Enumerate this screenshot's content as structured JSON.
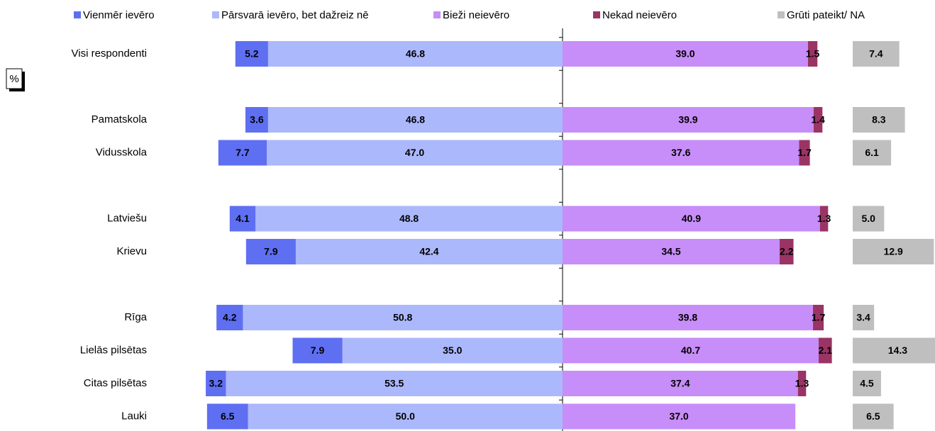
{
  "chart_data": {
    "type": "diverging-bar",
    "unit_label": "%",
    "categories": [
      "Visi respondenti",
      null,
      "Pamatskola",
      "Vidusskola",
      null,
      "Latviešu",
      "Krievu",
      null,
      "Rīga",
      "Lielās pilsētas",
      "Citas pilsētas",
      "Lauki"
    ],
    "series": [
      {
        "name": "Vienmēr ievēro",
        "color": "#5f6ff2",
        "values": [
          5.2,
          null,
          3.6,
          7.7,
          null,
          4.1,
          7.9,
          null,
          4.2,
          7.9,
          3.2,
          6.5
        ],
        "value_labels": [
          "5.2",
          null,
          "3.6",
          "7.7",
          null,
          "4.1",
          "7.9",
          null,
          "4.2",
          "7.9",
          "3.2",
          "6.5"
        ]
      },
      {
        "name": "Pārsvarā ievēro, bet dažreiz nē",
        "color": "#abb8fb",
        "values": [
          46.8,
          null,
          46.8,
          47.0,
          null,
          48.8,
          42.4,
          null,
          50.8,
          35.0,
          53.5,
          50.0
        ],
        "value_labels": [
          "46.8",
          null,
          "46.8",
          "47.0",
          null,
          "48.8",
          "42.4",
          null,
          "50.8",
          "35.0",
          "53.5",
          "50.0"
        ]
      },
      {
        "name": "Bieži neievēro",
        "color": "#c78df8",
        "values": [
          39.0,
          null,
          39.9,
          37.6,
          null,
          40.9,
          34.5,
          null,
          39.8,
          40.7,
          37.4,
          37.0
        ],
        "value_labels": [
          "39.0",
          null,
          "39.9",
          "37.6",
          null,
          "40.9",
          "34.5",
          null,
          "39.8",
          "40.7",
          "37.4",
          "37.0"
        ]
      },
      {
        "name": "Nekad neievēro",
        "color": "#9a3464",
        "values": [
          1.5,
          null,
          1.4,
          1.7,
          null,
          1.3,
          2.2,
          null,
          1.7,
          2.1,
          1.3,
          null
        ],
        "value_labels": [
          "1.5",
          null,
          "1.4",
          "1.7",
          null,
          "1.3",
          "2.2",
          null,
          "1.7",
          "2.1",
          "1.3",
          null
        ]
      },
      {
        "name": "Grūti pateikt/ NA",
        "color": "#bfbfbf",
        "values": [
          7.4,
          null,
          8.3,
          6.1,
          null,
          5.0,
          12.9,
          null,
          3.4,
          14.3,
          4.5,
          6.5
        ],
        "value_labels": [
          "7.4",
          null,
          "8.3",
          "6.1",
          null,
          "5.0",
          "12.9",
          null,
          "3.4",
          "14.3",
          "4.5",
          "6.5"
        ]
      }
    ]
  }
}
